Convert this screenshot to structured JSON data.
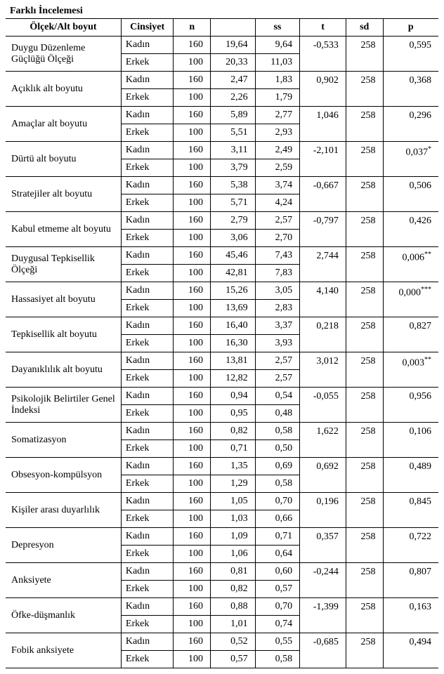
{
  "title": "Farklı İncelemesi",
  "headers": {
    "scale": "Ölçek/Alt boyut",
    "gender": "Cinsiyet",
    "n": "n",
    "mean": "",
    "ss": "ss",
    "t": "t",
    "sd": "sd",
    "p": "p"
  },
  "rows": [
    {
      "scale": "Duygu Düzenleme Güçlüğü Ölçeği",
      "g1": "Kadın",
      "n1": "160",
      "m1": "19,64",
      "ss1": "9,64",
      "g2": "Erkek",
      "n2": "100",
      "m2": "20,33",
      "ss2": "11,03",
      "t": "-0,533",
      "sd": "258",
      "p": "0,595",
      "sup": ""
    },
    {
      "scale": "Açıklık alt boyutu",
      "g1": "Kadın",
      "n1": "160",
      "m1": "2,47",
      "ss1": "1,83",
      "g2": "Erkek",
      "n2": "100",
      "m2": "2,26",
      "ss2": "1,79",
      "t": "0,902",
      "sd": "258",
      "p": "0,368",
      "sup": ""
    },
    {
      "scale": "Amaçlar alt boyutu",
      "g1": "Kadın",
      "n1": "160",
      "m1": "5,89",
      "ss1": "2,77",
      "g2": "Erkek",
      "n2": "100",
      "m2": "5,51",
      "ss2": "2,93",
      "t": "1,046",
      "sd": "258",
      "p": "0,296",
      "sup": ""
    },
    {
      "scale": "Dürtü alt boyutu",
      "g1": "Kadın",
      "n1": "160",
      "m1": "3,11",
      "ss1": "2,49",
      "g2": "Erkek",
      "n2": "100",
      "m2": "3,79",
      "ss2": "2,59",
      "t": "-2,101",
      "sd": "258",
      "p": "0,037",
      "sup": "*"
    },
    {
      "scale": "Stratejiler alt boyutu",
      "g1": "Kadın",
      "n1": "160",
      "m1": "5,38",
      "ss1": "3,74",
      "g2": "Erkek",
      "n2": "100",
      "m2": "5,71",
      "ss2": "4,24",
      "t": "-0,667",
      "sd": "258",
      "p": "0,506",
      "sup": ""
    },
    {
      "scale": "Kabul etmeme alt boyutu",
      "g1": "Kadın",
      "n1": "160",
      "m1": "2,79",
      "ss1": "2,57",
      "g2": "Erkek",
      "n2": "100",
      "m2": "3,06",
      "ss2": "2,70",
      "t": "-0,797",
      "sd": "258",
      "p": "0,426",
      "sup": ""
    },
    {
      "scale": "Duygusal Tepkisellik Ölçeği",
      "g1": "Kadın",
      "n1": "160",
      "m1": "45,46",
      "ss1": "7,43",
      "g2": "Erkek",
      "n2": "100",
      "m2": "42,81",
      "ss2": "7,83",
      "t": "2,744",
      "sd": "258",
      "p": "0,006",
      "sup": "**"
    },
    {
      "scale": "Hassasiyet alt boyutu",
      "g1": "Kadın",
      "n1": "160",
      "m1": "15,26",
      "ss1": "3,05",
      "g2": "Erkek",
      "n2": "100",
      "m2": "13,69",
      "ss2": "2,83",
      "t": "4,140",
      "sd": "258",
      "p": "0,000",
      "sup": "***"
    },
    {
      "scale": "Tepkisellik alt boyutu",
      "g1": "Kadın",
      "n1": "160",
      "m1": "16,40",
      "ss1": "3,37",
      "g2": "Erkek",
      "n2": "100",
      "m2": "16,30",
      "ss2": "3,93",
      "t": "0,218",
      "sd": "258",
      "p": "0,827",
      "sup": ""
    },
    {
      "scale": "Dayanıklılık alt boyutu",
      "g1": "Kadın",
      "n1": "160",
      "m1": "13,81",
      "ss1": "2,57",
      "g2": "Erkek",
      "n2": "100",
      "m2": "12,82",
      "ss2": "2,57",
      "t": "3,012",
      "sd": "258",
      "p": "0,003",
      "sup": "**"
    },
    {
      "scale": "Psikolojik Belirtiler Genel İndeksi",
      "g1": "Kadın",
      "n1": "160",
      "m1": "0,94",
      "ss1": "0,54",
      "g2": "Erkek",
      "n2": "100",
      "m2": "0,95",
      "ss2": "0,48",
      "t": "-0,055",
      "sd": "258",
      "p": "0,956",
      "sup": ""
    },
    {
      "scale": "Somatizasyon",
      "g1": "Kadın",
      "n1": "160",
      "m1": "0,82",
      "ss1": "0,58",
      "g2": "Erkek",
      "n2": "100",
      "m2": "0,71",
      "ss2": "0,50",
      "t": "1,622",
      "sd": "258",
      "p": "0,106",
      "sup": ""
    },
    {
      "scale": "Obsesyon-kompülsyon",
      "g1": "Kadın",
      "n1": "160",
      "m1": "1,35",
      "ss1": "0,69",
      "g2": "Erkek",
      "n2": "100",
      "m2": "1,29",
      "ss2": "0,58",
      "t": "0,692",
      "sd": "258",
      "p": "0,489",
      "sup": ""
    },
    {
      "scale": "Kişiler arası duyarlılık",
      "g1": "Kadın",
      "n1": "160",
      "m1": "1,05",
      "ss1": "0,70",
      "g2": "Erkek",
      "n2": "100",
      "m2": "1,03",
      "ss2": "0,66",
      "t": "0,196",
      "sd": "258",
      "p": "0,845",
      "sup": ""
    },
    {
      "scale": "Depresyon",
      "g1": "Kadın",
      "n1": "160",
      "m1": "1,09",
      "ss1": "0,71",
      "g2": "Erkek",
      "n2": "100",
      "m2": "1,06",
      "ss2": "0,64",
      "t": "0,357",
      "sd": "258",
      "p": "0,722",
      "sup": ""
    },
    {
      "scale": "Anksiyete",
      "g1": "Kadın",
      "n1": "160",
      "m1": "0,81",
      "ss1": "0,60",
      "g2": "Erkek",
      "n2": "100",
      "m2": "0,82",
      "ss2": "0,57",
      "t": "-0,244",
      "sd": "258",
      "p": "0,807",
      "sup": ""
    },
    {
      "scale": "Öfke-düşmanlık",
      "g1": "Kadın",
      "n1": "160",
      "m1": "0,88",
      "ss1": "0,70",
      "g2": "Erkek",
      "n2": "100",
      "m2": "1,01",
      "ss2": "0,74",
      "t": "-1,399",
      "sd": "258",
      "p": "0,163",
      "sup": ""
    },
    {
      "scale": "Fobik anksiyete",
      "g1": "Kadın",
      "n1": "160",
      "m1": "0,52",
      "ss1": "0,55",
      "g2": "Erkek",
      "n2": "100",
      "m2": "0,57",
      "ss2": "0,58",
      "t": "-0,685",
      "sd": "258",
      "p": "0,494",
      "sup": ""
    }
  ]
}
